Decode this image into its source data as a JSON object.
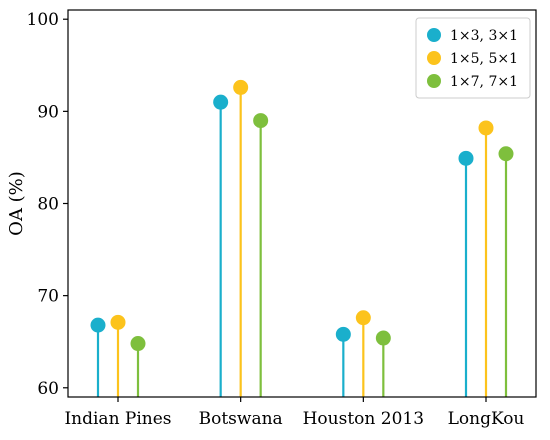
{
  "chart_data": {
    "type": "lollipop",
    "title": "",
    "xlabel": "",
    "ylabel": "OA (%)",
    "ylim": [
      59,
      101
    ],
    "yticks": [
      60,
      70,
      80,
      90,
      100
    ],
    "grid": false,
    "legend_position": "top-right",
    "categories": [
      "Indian Pines",
      "Botswana",
      "Houston 2013",
      "LongKou"
    ],
    "series": [
      {
        "name": "1×3, 3×1",
        "color": "#1aafcc",
        "values": [
          66.8,
          91.0,
          65.8,
          84.9
        ]
      },
      {
        "name": "1×5, 5×1",
        "color": "#fcc31c",
        "values": [
          67.1,
          92.6,
          67.6,
          88.2
        ]
      },
      {
        "name": "1×7, 7×1",
        "color": "#7ebf3d",
        "values": [
          64.8,
          89.0,
          65.4,
          85.4
        ]
      }
    ]
  }
}
